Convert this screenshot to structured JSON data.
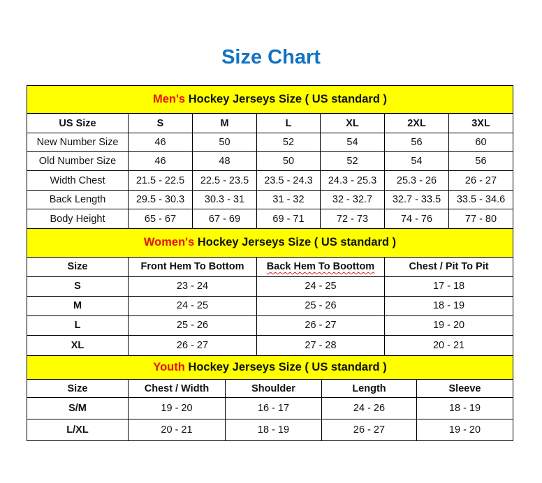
{
  "title": "Size Chart",
  "colors": {
    "title": "#1273c2",
    "section_bg": "#ffff00",
    "highlight": "#e8120c"
  },
  "mens": {
    "title_highlight": "Men's",
    "title_rest": " Hockey Jerseys Size ( US standard )",
    "headers": [
      "US Size",
      "S",
      "M",
      "L",
      "XL",
      "2XL",
      "3XL"
    ],
    "rows": [
      [
        "New Number Size",
        "46",
        "50",
        "52",
        "54",
        "56",
        "60"
      ],
      [
        "Old Number Size",
        "46",
        "48",
        "50",
        "52",
        "54",
        "56"
      ],
      [
        "Width Chest",
        "21.5 - 22.5",
        "22.5 - 23.5",
        "23.5 - 24.3",
        "24.3 - 25.3",
        "25.3 - 26",
        "26 - 27"
      ],
      [
        "Back Length",
        "29.5 - 30.3",
        "30.3 - 31",
        "31 - 32",
        "32 - 32.7",
        "32.7 - 33.5",
        "33.5 - 34.6"
      ],
      [
        "Body Height",
        "65 - 67",
        "67 - 69",
        "69 - 71",
        "72 - 73",
        "74 - 76",
        "77 - 80"
      ]
    ]
  },
  "womens": {
    "title_highlight": "Women's",
    "title_rest": " Hockey Jerseys Size ( US standard )",
    "headers": [
      "Size",
      "Front Hem To Bottom",
      "Back Hem To Boottom",
      "Chest / Pit To Pit"
    ],
    "rows": [
      [
        "S",
        "23 - 24",
        "24 - 25",
        "17 - 18"
      ],
      [
        "M",
        "24 - 25",
        "25 - 26",
        "18 - 19"
      ],
      [
        "L",
        "25 - 26",
        "26 - 27",
        "19 - 20"
      ],
      [
        "XL",
        "26 - 27",
        "27 - 28",
        "20 - 21"
      ]
    ]
  },
  "youth": {
    "title_highlight": "Youth",
    "title_rest": " Hockey Jerseys Size ( US standard )",
    "headers": [
      "Size",
      "Chest / Width",
      "Shoulder",
      "Length",
      "Sleeve"
    ],
    "rows": [
      [
        "S/M",
        "19 - 20",
        "16 - 17",
        "24 - 26",
        "18 - 19"
      ],
      [
        "L/XL",
        "20 - 21",
        "18 - 19",
        "26 - 27",
        "19 - 20"
      ]
    ]
  }
}
